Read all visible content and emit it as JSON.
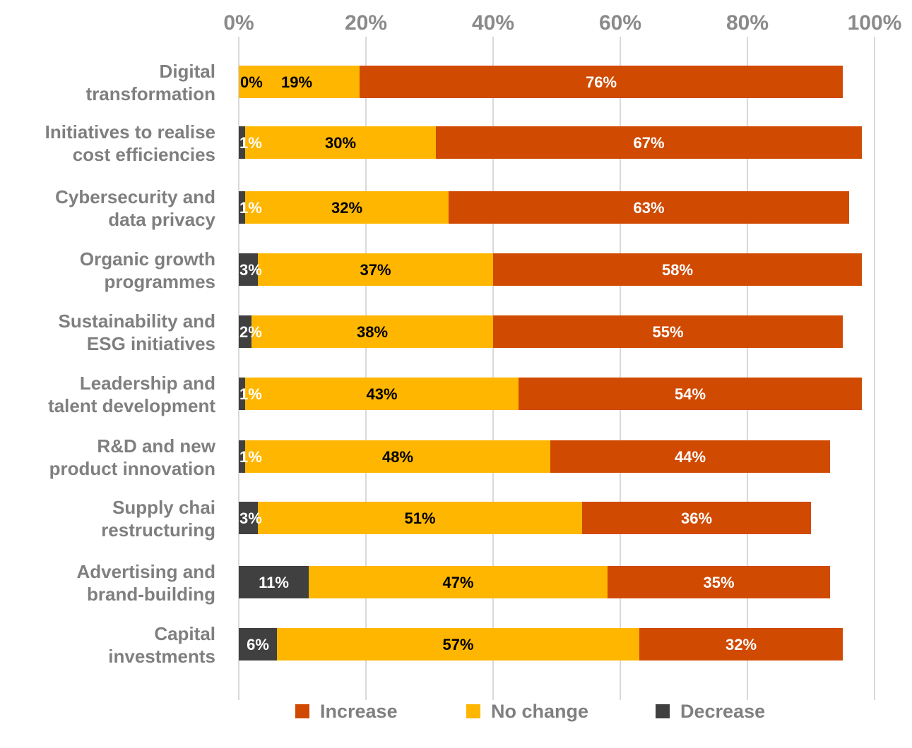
{
  "chart_data": {
    "type": "bar",
    "orientation": "horizontal",
    "stacked": true,
    "title": "",
    "xlabel": "",
    "ylabel": "",
    "xlim": [
      0,
      100
    ],
    "xticks": [
      "0%",
      "20%",
      "40%",
      "60%",
      "80%",
      "100%"
    ],
    "xticks_position": "top",
    "grid": true,
    "legend_position": "bottom",
    "categories": [
      [
        "Digital",
        "transformation"
      ],
      [
        "Initiatives to realise",
        "cost efficiencies"
      ],
      [
        "Cybersecurity and",
        "data privacy"
      ],
      [
        "Organic growth",
        "programmes"
      ],
      [
        "Sustainability and",
        "ESG initiatives"
      ],
      [
        "Leadership and",
        "talent development"
      ],
      [
        "R&D and new",
        "product innovation"
      ],
      [
        "Supply chai",
        "restructuring"
      ],
      [
        "Advertising and",
        "brand-building"
      ],
      [
        "Capital",
        "investments"
      ]
    ],
    "series": [
      {
        "name": "Decrease",
        "color": "#404040",
        "label_color": "#ffffff",
        "values": [
          0,
          1,
          1,
          3,
          2,
          1,
          1,
          3,
          11,
          6
        ]
      },
      {
        "name": "No change",
        "color": "#FFB600",
        "label_color": "#000000",
        "values": [
          19,
          30,
          32,
          37,
          38,
          43,
          48,
          51,
          47,
          57
        ]
      },
      {
        "name": "Increase",
        "color": "#D04A02",
        "label_color": "#ffffff",
        "values": [
          76,
          67,
          63,
          58,
          55,
          54,
          44,
          36,
          35,
          32
        ]
      }
    ],
    "value_labels": {
      "Decrease": [
        "0%",
        "1%",
        "1%",
        "3%",
        "2%",
        "1%",
        "1%",
        "3%",
        "11%",
        "6%"
      ],
      "No change": [
        "19%",
        "30%",
        "32%",
        "37%",
        "38%",
        "43%",
        "48%",
        "51%",
        "47%",
        "57%"
      ],
      "Increase": [
        "76%",
        "67%",
        "63%",
        "58%",
        "55%",
        "54%",
        "44%",
        "36%",
        "35%",
        "32%"
      ]
    },
    "legend_order": [
      "Increase",
      "No change",
      "Decrease"
    ]
  }
}
